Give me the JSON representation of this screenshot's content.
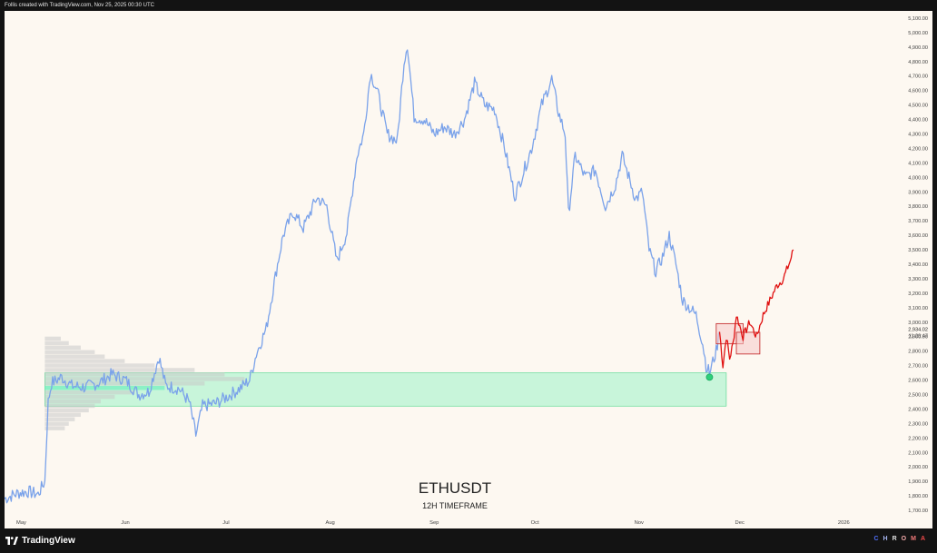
{
  "header": {
    "caption": "Follis created with TradingView.com, Nov 25, 2025 00:30 UTC"
  },
  "footer": {
    "brand": "TradingView",
    "chroma_letters": [
      {
        "ch": "C",
        "color": "#4e6df5"
      },
      {
        "ch": "H",
        "color": "#a6b5f0"
      },
      {
        "ch": "R",
        "color": "#e0e0e0"
      },
      {
        "ch": "O",
        "color": "#f0a8a8"
      },
      {
        "ch": "M",
        "color": "#f27a7a"
      },
      {
        "ch": "A",
        "color": "#f24a4a"
      }
    ]
  },
  "colors": {
    "history": "#7aa2ea",
    "projection": "#e01010",
    "zone_fill": "#bff5d6",
    "zone_edge": "#2ed07a",
    "profile": "#c8c8c8",
    "profile_poc": "#7cf0c0"
  },
  "chart_data": {
    "type": "line",
    "symbol": "ETHUSDT",
    "timeframe": "12H TIMEFRAME",
    "ylim": [
      1650,
      5150
    ],
    "y_ticks": [
      1700,
      1800,
      1900,
      2000,
      2100,
      2200,
      2300,
      2400,
      2500,
      2600,
      2700,
      2800,
      2900,
      3000,
      3100,
      3200,
      3300,
      3400,
      3500,
      3600,
      3700,
      3800,
      3900,
      4000,
      4100,
      4200,
      4300,
      4400,
      4500,
      4600,
      4700,
      4800,
      4900,
      5000,
      5100
    ],
    "x_range": [
      "2025-04-26",
      "2026-01-12"
    ],
    "x_ticks": [
      {
        "label": "May",
        "date": "2025-05-01"
      },
      {
        "label": "Jun",
        "date": "2025-06-01"
      },
      {
        "label": "Jul",
        "date": "2025-07-01"
      },
      {
        "label": "Aug",
        "date": "2025-08-01"
      },
      {
        "label": "Sep",
        "date": "2025-09-01"
      },
      {
        "label": "Oct",
        "date": "2025-10-01"
      },
      {
        "label": "Nov",
        "date": "2025-11-01"
      },
      {
        "label": "Dec",
        "date": "2025-12-01"
      },
      {
        "label": "2026",
        "date": "2026-01-01"
      }
    ],
    "current_price_label": "2,934.02",
    "countdown_label": "11:29:47",
    "current_price": 2934,
    "series": [
      {
        "role": "history",
        "points": [
          [
            "2025-04-26",
            1780
          ],
          [
            "2025-04-30",
            1820
          ],
          [
            "2025-05-03",
            1830
          ],
          [
            "2025-05-06",
            1810
          ],
          [
            "2025-05-08",
            1900
          ],
          [
            "2025-05-09",
            2450
          ],
          [
            "2025-05-10",
            2580
          ],
          [
            "2025-05-13",
            2620
          ],
          [
            "2025-05-16",
            2560
          ],
          [
            "2025-05-20",
            2550
          ],
          [
            "2025-05-24",
            2580
          ],
          [
            "2025-05-28",
            2640
          ],
          [
            "2025-06-01",
            2600
          ],
          [
            "2025-06-05",
            2500
          ],
          [
            "2025-06-08",
            2520
          ],
          [
            "2025-06-11",
            2760
          ],
          [
            "2025-06-13",
            2560
          ],
          [
            "2025-06-17",
            2540
          ],
          [
            "2025-06-20",
            2450
          ],
          [
            "2025-06-22",
            2220
          ],
          [
            "2025-06-24",
            2420
          ],
          [
            "2025-06-28",
            2440
          ],
          [
            "2025-07-01",
            2480
          ],
          [
            "2025-07-05",
            2540
          ],
          [
            "2025-07-08",
            2600
          ],
          [
            "2025-07-10",
            2780
          ],
          [
            "2025-07-13",
            2960
          ],
          [
            "2025-07-16",
            3360
          ],
          [
            "2025-07-18",
            3600
          ],
          [
            "2025-07-21",
            3760
          ],
          [
            "2025-07-24",
            3650
          ],
          [
            "2025-07-28",
            3860
          ],
          [
            "2025-07-31",
            3800
          ],
          [
            "2025-08-03",
            3420
          ],
          [
            "2025-08-06",
            3620
          ],
          [
            "2025-08-09",
            4150
          ],
          [
            "2025-08-11",
            4300
          ],
          [
            "2025-08-13",
            4720
          ],
          [
            "2025-08-15",
            4600
          ],
          [
            "2025-08-18",
            4300
          ],
          [
            "2025-08-21",
            4250
          ],
          [
            "2025-08-23",
            4800
          ],
          [
            "2025-08-24",
            4920
          ],
          [
            "2025-08-26",
            4420
          ],
          [
            "2025-08-29",
            4400
          ],
          [
            "2025-09-01",
            4300
          ],
          [
            "2025-09-04",
            4350
          ],
          [
            "2025-09-07",
            4300
          ],
          [
            "2025-09-10",
            4400
          ],
          [
            "2025-09-13",
            4650
          ],
          [
            "2025-09-16",
            4500
          ],
          [
            "2025-09-19",
            4470
          ],
          [
            "2025-09-22",
            4200
          ],
          [
            "2025-09-25",
            3870
          ],
          [
            "2025-09-27",
            4000
          ],
          [
            "2025-09-30",
            4200
          ],
          [
            "2025-10-03",
            4500
          ],
          [
            "2025-10-06",
            4680
          ],
          [
            "2025-10-08",
            4450
          ],
          [
            "2025-10-10",
            4300
          ],
          [
            "2025-10-11",
            3750
          ],
          [
            "2025-10-13",
            4150
          ],
          [
            "2025-10-16",
            4000
          ],
          [
            "2025-10-19",
            4050
          ],
          [
            "2025-10-22",
            3800
          ],
          [
            "2025-10-25",
            3950
          ],
          [
            "2025-10-27",
            4150
          ],
          [
            "2025-10-29",
            4000
          ],
          [
            "2025-10-31",
            3850
          ],
          [
            "2025-11-02",
            3900
          ],
          [
            "2025-11-04",
            3500
          ],
          [
            "2025-11-06",
            3350
          ],
          [
            "2025-11-08",
            3450
          ],
          [
            "2025-11-10",
            3600
          ],
          [
            "2025-11-12",
            3400
          ],
          [
            "2025-11-14",
            3150
          ],
          [
            "2025-11-16",
            3100
          ],
          [
            "2025-11-18",
            3050
          ],
          [
            "2025-11-20",
            2850
          ],
          [
            "2025-11-21",
            2700
          ],
          [
            "2025-11-22",
            2650
          ],
          [
            "2025-11-24",
            2800
          ],
          [
            "2025-11-25",
            2934
          ]
        ]
      },
      {
        "role": "projection",
        "points": [
          [
            "2025-11-25",
            2934
          ],
          [
            "2025-11-26",
            2700
          ],
          [
            "2025-11-27",
            2900
          ],
          [
            "2025-11-28",
            2750
          ],
          [
            "2025-11-29",
            2850
          ],
          [
            "2025-11-30",
            3050
          ],
          [
            "2025-12-02",
            2900
          ],
          [
            "2025-12-04",
            3000
          ],
          [
            "2025-12-06",
            2900
          ],
          [
            "2025-12-08",
            3050
          ],
          [
            "2025-12-10",
            3150
          ],
          [
            "2025-12-12",
            3250
          ],
          [
            "2025-12-14",
            3300
          ],
          [
            "2025-12-16",
            3420
          ],
          [
            "2025-12-17",
            3500
          ]
        ]
      }
    ],
    "zones": [
      {
        "name": "demand-zone",
        "from": "2025-05-08",
        "to": "2025-11-27",
        "low": 2420,
        "high": 2650
      }
    ],
    "boxes": [
      {
        "name": "projection-box-upper",
        "from": "2025-11-24",
        "to": "2025-12-02",
        "low": 2850,
        "high": 2990
      },
      {
        "name": "projection-box-lower",
        "from": "2025-11-30",
        "to": "2025-12-07",
        "low": 2780,
        "high": 2930
      }
    ],
    "markers": [
      {
        "name": "low-touch-marker",
        "date": "2025-11-22",
        "value": 2620
      }
    ],
    "volume_profile": {
      "from": "2025-05-08",
      "price_min": 2250,
      "price_max": 2900,
      "poc_price": 2550,
      "widths": [
        0.1,
        0.12,
        0.15,
        0.18,
        0.22,
        0.25,
        0.28,
        0.35,
        0.45,
        0.6,
        0.8,
        1.0,
        0.9,
        0.75,
        0.55,
        0.4,
        0.3,
        0.25,
        0.18,
        0.12,
        0.08
      ]
    }
  }
}
